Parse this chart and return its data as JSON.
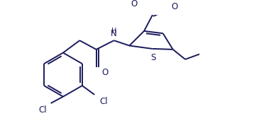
{
  "bg_color": "#ffffff",
  "line_color": "#1a1a5e",
  "line_width": 1.4,
  "font_size": 8.5,
  "figure_width": 3.58,
  "figure_height": 1.88,
  "xlim": [
    0,
    9.5
  ],
  "ylim": [
    0,
    5.0
  ]
}
